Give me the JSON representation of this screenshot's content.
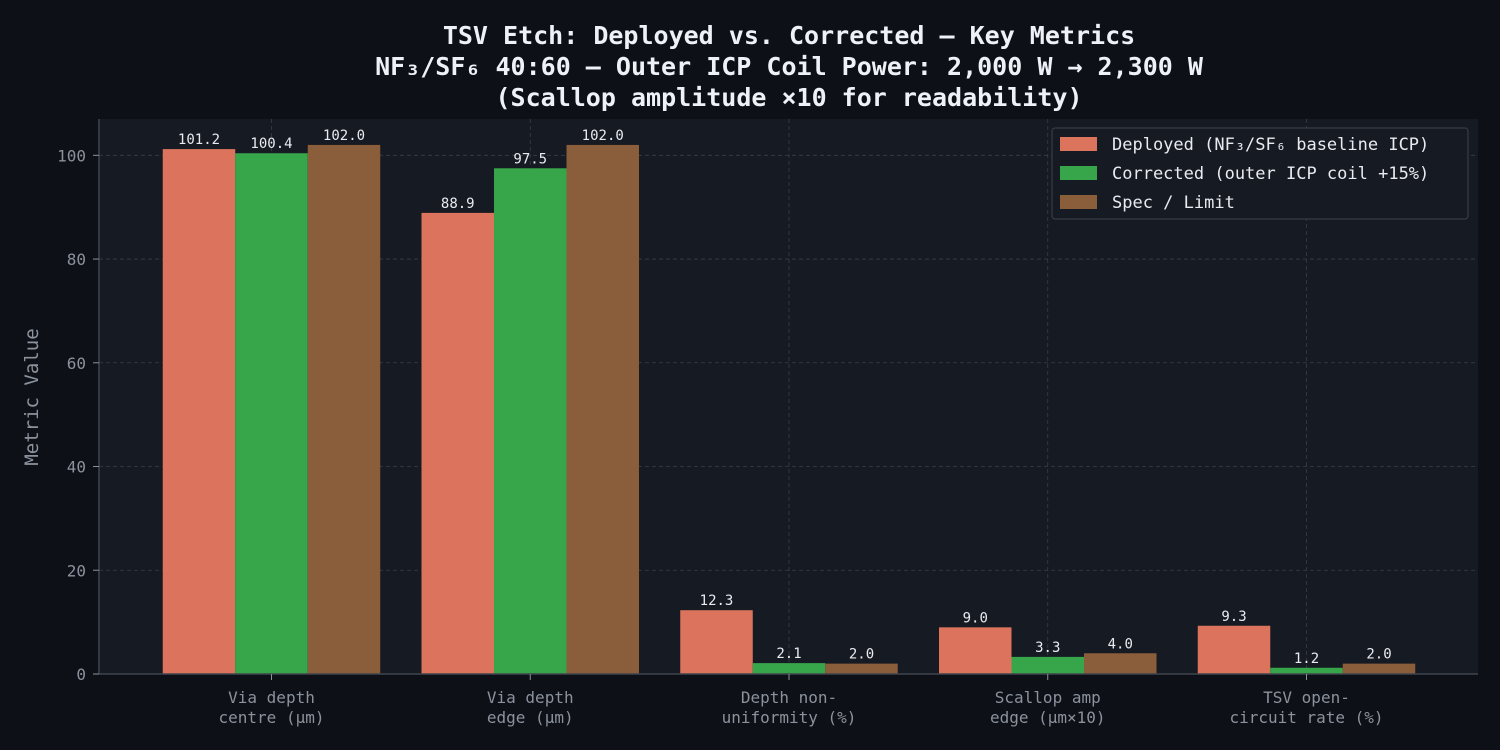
{
  "chart_data": {
    "type": "bar",
    "title_lines": [
      "TSV Etch: Deployed vs. Corrected — Key Metrics",
      "NF₃/SF₆ 40:60 — Outer ICP Coil Power: 2,000 W → 2,300 W",
      "(Scallop amplitude ×10 for readability)"
    ],
    "ylabel": "Metric Value",
    "ylim": [
      0,
      107
    ],
    "yticks": [
      0,
      20,
      40,
      60,
      80,
      100
    ],
    "grid": true,
    "legend_position": "top-right",
    "categories": [
      [
        "Via depth",
        "centre (μm)"
      ],
      [
        "Via depth",
        "edge (μm)"
      ],
      [
        "Depth non-",
        "uniformity (%)"
      ],
      [
        "Scallop amp",
        "edge (μm×10)"
      ],
      [
        "TSV open-",
        "circuit rate (%)"
      ]
    ],
    "series": [
      {
        "name": "Deployed (NF₃/SF₆ baseline ICP)",
        "color": "#dc745d",
        "values": [
          101.2,
          88.9,
          12.3,
          9.0,
          9.3
        ]
      },
      {
        "name": "Corrected (outer ICP coil +15%)",
        "color": "#37a54a",
        "values": [
          100.4,
          97.5,
          2.1,
          3.3,
          1.2
        ]
      },
      {
        "name": "Spec / Limit",
        "color": "#8a5d3b",
        "values": [
          102.0,
          102.0,
          2.0,
          4.0,
          2.0
        ]
      }
    ],
    "colors": {
      "background": "#0d1017",
      "plot_background": "#161a22",
      "grid": "#3a3f48",
      "axis": "#40454e",
      "text": "#8b929d",
      "title": "#eef1f6"
    }
  }
}
